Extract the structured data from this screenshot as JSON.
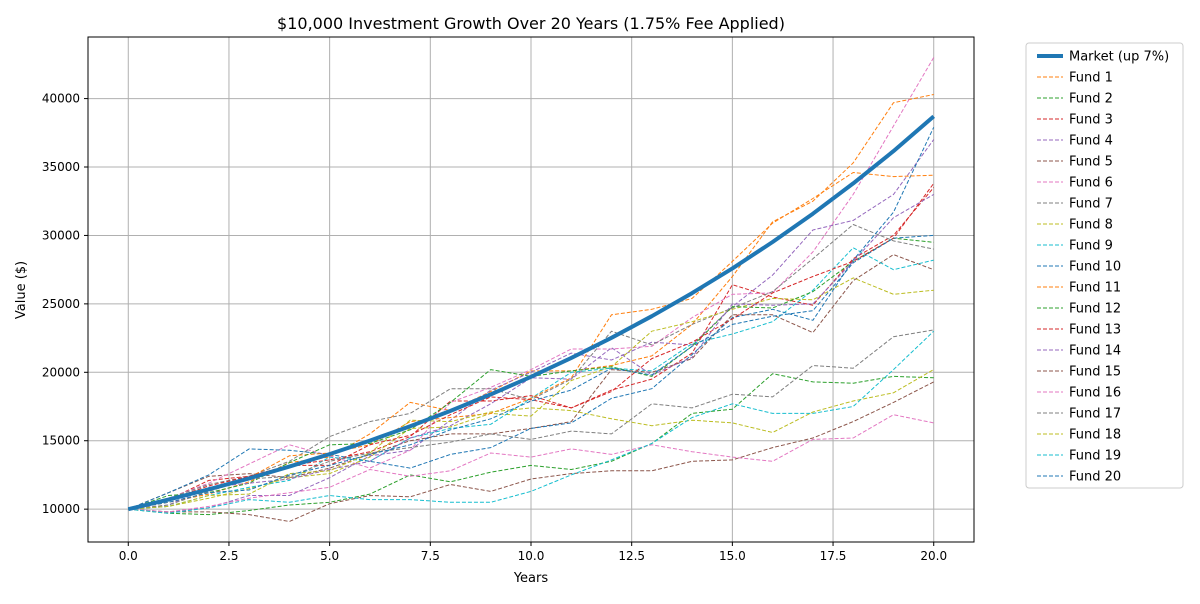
{
  "chart_data": {
    "type": "line",
    "title": "$10,000 Investment Growth Over 20 Years (1.75% Fee Applied)",
    "xlabel": "Years",
    "ylabel": "Value ($)",
    "xlim": [
      -1.0,
      21.0
    ],
    "ylim": [
      7600,
      44500
    ],
    "x_ticks": [
      0.0,
      2.5,
      5.0,
      7.5,
      10.0,
      12.5,
      15.0,
      17.5,
      20.0
    ],
    "x_tick_labels": [
      "0.0",
      "2.5",
      "5.0",
      "7.5",
      "10.0",
      "12.5",
      "15.0",
      "17.5",
      "20.0"
    ],
    "y_ticks": [
      10000,
      15000,
      20000,
      25000,
      30000,
      35000,
      40000
    ],
    "y_tick_labels": [
      "10000",
      "15000",
      "20000",
      "25000",
      "30000",
      "35000",
      "40000"
    ],
    "grid": true,
    "legend_position": "outside-right",
    "x": [
      0,
      1,
      2,
      3,
      4,
      5,
      6,
      7,
      8,
      9,
      10,
      11,
      12,
      13,
      14,
      15,
      16,
      17,
      18,
      19,
      20
    ],
    "series": [
      {
        "name": "Market (up 7%)",
        "color": "#1f77b4",
        "style": "solid",
        "emphasis": true,
        "values": [
          10000,
          10700,
          11449,
          12250,
          13108,
          14026,
          15007,
          16058,
          17182,
          18385,
          19672,
          21049,
          22522,
          24098,
          25785,
          27590,
          29522,
          31588,
          33799,
          36165,
          38697
        ]
      },
      {
        "name": "Fund 1",
        "color": "#ff7f0e",
        "style": "dashed",
        "values": [
          10000,
          10500,
          11100,
          12000,
          13400,
          13800,
          15500,
          17800,
          17200,
          18600,
          20100,
          20100,
          20500,
          21200,
          23500,
          27000,
          31000,
          32500,
          35300,
          39700,
          40300
        ]
      },
      {
        "name": "Fund 2",
        "color": "#2ca02c",
        "style": "dashed",
        "values": [
          10000,
          9700,
          9600,
          9900,
          10300,
          10500,
          11100,
          12500,
          12000,
          12700,
          13200,
          12900,
          13500,
          14800,
          17000,
          17300,
          19900,
          19300,
          19200,
          19700,
          19600
        ]
      },
      {
        "name": "Fund 3",
        "color": "#d62728",
        "style": "dashed",
        "values": [
          10000,
          10700,
          12100,
          12400,
          13200,
          13600,
          14200,
          15300,
          17900,
          17900,
          18300,
          17400,
          18700,
          19500,
          21400,
          26400,
          25500,
          24900,
          28300,
          30000,
          33500
        ]
      },
      {
        "name": "Fund 4",
        "color": "#9467bd",
        "style": "dashed",
        "values": [
          10000,
          9800,
          10100,
          11000,
          11000,
          12300,
          13900,
          14300,
          16500,
          18700,
          20000,
          21400,
          20900,
          22200,
          22000,
          24800,
          27100,
          30400,
          31100,
          33000,
          37000
        ]
      },
      {
        "name": "Fund 5",
        "color": "#8c564b",
        "style": "dashed",
        "values": [
          10000,
          11200,
          12400,
          12600,
          12300,
          13000,
          14000,
          15000,
          15500,
          15500,
          15900,
          16400,
          20200,
          20000,
          21000,
          24200,
          24200,
          22900,
          26700,
          28600,
          27500
        ]
      },
      {
        "name": "Fund 6",
        "color": "#e377c2",
        "style": "dashed",
        "values": [
          10000,
          10800,
          11900,
          13300,
          14700,
          13900,
          13000,
          14300,
          17800,
          18900,
          20200,
          21700,
          21700,
          21900,
          24000,
          25700,
          25800,
          28800,
          33000,
          38000,
          43000
        ]
      },
      {
        "name": "Fund 7",
        "color": "#7f7f7f",
        "style": "dashed",
        "values": [
          10000,
          10800,
          11800,
          12400,
          13500,
          15300,
          16400,
          17000,
          18800,
          18800,
          18000,
          19500,
          23000,
          22000,
          23500,
          24700,
          25900,
          28300,
          30800,
          29600,
          29000
        ]
      },
      {
        "name": "Fund 8",
        "color": "#bcbd22",
        "style": "dashed",
        "values": [
          10000,
          10200,
          10800,
          11500,
          12300,
          12600,
          13800,
          15900,
          16000,
          17000,
          16800,
          19400,
          20400,
          23000,
          23700,
          24600,
          25400,
          25300,
          26900,
          25700,
          26000
        ]
      },
      {
        "name": "Fund 9",
        "color": "#17becf",
        "style": "dashed",
        "values": [
          10000,
          10200,
          11000,
          11600,
          12100,
          13800,
          13500,
          15200,
          15900,
          16200,
          18100,
          20000,
          20300,
          20100,
          22100,
          22800,
          23700,
          26000,
          29100,
          27500,
          28200
        ]
      },
      {
        "name": "Fund 10",
        "color": "#1f77b4",
        "style": "dashed",
        "values": [
          10000,
          11200,
          12500,
          14400,
          14300,
          14000,
          13500,
          13000,
          14000,
          14500,
          15900,
          16300,
          18100,
          18800,
          21300,
          24000,
          24600,
          23800,
          28200,
          31700,
          37900
        ]
      },
      {
        "name": "Fund 11",
        "color": "#ff7f0e",
        "style": "dashed",
        "values": [
          10000,
          10800,
          11500,
          12300,
          13900,
          14100,
          14700,
          16400,
          16700,
          17000,
          18100,
          19600,
          24200,
          24600,
          25400,
          28100,
          30900,
          32700,
          34600,
          34300,
          34400
        ]
      },
      {
        "name": "Fund 12",
        "color": "#2ca02c",
        "style": "dashed",
        "values": [
          10000,
          11000,
          11200,
          11900,
          13400,
          14700,
          14800,
          15800,
          17800,
          20200,
          19700,
          20100,
          20400,
          19700,
          21900,
          24800,
          24700,
          25900,
          28100,
          29800,
          29500
        ]
      },
      {
        "name": "Fund 13",
        "color": "#d62728",
        "style": "dashed",
        "values": [
          10000,
          10700,
          11700,
          12400,
          13200,
          13200,
          14700,
          15400,
          16900,
          18200,
          18000,
          17400,
          18600,
          21000,
          22200,
          23900,
          25800,
          27000,
          28100,
          29800,
          33800
        ]
      },
      {
        "name": "Fund 14",
        "color": "#9467bd",
        "style": "dashed",
        "values": [
          10000,
          10300,
          11600,
          11900,
          12200,
          12900,
          13500,
          15200,
          16100,
          17700,
          19600,
          19500,
          21800,
          19800,
          21100,
          25000,
          24900,
          25000,
          28100,
          31300,
          33000
        ]
      },
      {
        "name": "Fund 15",
        "color": "#8c564b",
        "style": "dashed",
        "values": [
          10000,
          9800,
          9800,
          9600,
          9100,
          10400,
          11000,
          10900,
          11800,
          11300,
          12200,
          12600,
          12800,
          12800,
          13500,
          13600,
          14500,
          15200,
          16400,
          17800,
          19300
        ]
      },
      {
        "name": "Fund 16",
        "color": "#e377c2",
        "style": "dashed",
        "values": [
          10000,
          9800,
          10200,
          10800,
          11200,
          11600,
          12900,
          12400,
          12800,
          14100,
          13800,
          14400,
          14000,
          14700,
          14200,
          13800,
          13500,
          15100,
          15200,
          16900,
          16300
        ]
      },
      {
        "name": "Fund 17",
        "color": "#7f7f7f",
        "style": "dashed",
        "values": [
          10000,
          10300,
          11300,
          12200,
          12400,
          13500,
          14100,
          14500,
          14900,
          15500,
          15100,
          15700,
          15500,
          17700,
          17400,
          18400,
          18200,
          20500,
          20300,
          22600,
          23100
        ]
      },
      {
        "name": "Fund 18",
        "color": "#bcbd22",
        "style": "dashed",
        "values": [
          10000,
          10200,
          11000,
          11100,
          12600,
          12800,
          14100,
          16500,
          16400,
          17100,
          17400,
          17200,
          16600,
          16100,
          16500,
          16300,
          15600,
          17100,
          17900,
          18500,
          20200
        ]
      },
      {
        "name": "Fund 19",
        "color": "#17becf",
        "style": "dashed",
        "values": [
          10000,
          9700,
          10100,
          10700,
          10500,
          11000,
          10700,
          10700,
          10500,
          10500,
          11300,
          12500,
          13600,
          14800,
          16700,
          17700,
          17000,
          17000,
          17500,
          20200,
          23000
        ]
      },
      {
        "name": "Fund 20",
        "color": "#1f77b4",
        "style": "dashed",
        "values": [
          10000,
          10500,
          11200,
          11400,
          12500,
          13200,
          14000,
          14700,
          15800,
          16600,
          17900,
          18700,
          20300,
          19800,
          21900,
          23500,
          24100,
          24500,
          28000,
          29800,
          30000
        ]
      }
    ]
  }
}
